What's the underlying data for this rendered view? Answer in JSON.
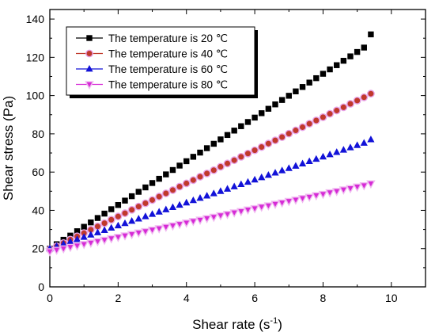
{
  "chart_data": {
    "type": "scatter",
    "xlabel": "Shear rate (s",
    "xlabel_sup": "-1",
    "xlabel_end": ")",
    "ylabel": "Shear stress (Pa)",
    "xlim": [
      0,
      11
    ],
    "ylim": [
      0,
      145
    ],
    "xticks": [
      0,
      2,
      4,
      6,
      8,
      10
    ],
    "yticks": [
      0,
      20,
      40,
      60,
      80,
      100,
      120,
      140
    ],
    "grid": false,
    "legend_position": "top-left",
    "series": [
      {
        "name": "The temperature is 20 ℃",
        "marker": "square",
        "color": "#000000",
        "x": [
          0.0,
          0.2,
          0.4,
          0.6,
          0.8,
          1.0,
          1.2,
          1.4,
          1.6,
          1.8,
          2.0,
          2.2,
          2.4,
          2.6,
          2.8,
          3.0,
          3.2,
          3.4,
          3.6,
          3.8,
          4.0,
          4.2,
          4.4,
          4.6,
          4.8,
          5.0,
          5.2,
          5.4,
          5.6,
          5.8,
          6.0,
          6.2,
          6.4,
          6.6,
          6.8,
          7.0,
          7.2,
          7.4,
          7.6,
          7.8,
          8.0,
          8.2,
          8.4,
          8.6,
          8.8,
          9.0,
          9.2,
          9.4
        ],
        "y": [
          20.0,
          22.3,
          24.6,
          26.8,
          29.1,
          31.4,
          33.7,
          36.0,
          38.3,
          40.6,
          42.8,
          45.1,
          47.4,
          49.7,
          52.0,
          54.3,
          56.5,
          58.8,
          61.1,
          63.4,
          65.7,
          68.0,
          70.2,
          72.5,
          74.8,
          77.1,
          79.4,
          81.7,
          84.0,
          86.2,
          88.5,
          90.8,
          93.1,
          95.4,
          97.7,
          99.9,
          102.2,
          104.5,
          106.8,
          109.1,
          111.4,
          113.7,
          115.9,
          118.2,
          120.5,
          122.8,
          125.1,
          132.0
        ]
      },
      {
        "name": "The temperature is 40 ℃",
        "marker": "circle",
        "color": "#c0392b",
        "x": [
          0.0,
          0.2,
          0.4,
          0.6,
          0.8,
          1.0,
          1.2,
          1.4,
          1.6,
          1.8,
          2.0,
          2.2,
          2.4,
          2.6,
          2.8,
          3.0,
          3.2,
          3.4,
          3.6,
          3.8,
          4.0,
          4.2,
          4.4,
          4.6,
          4.8,
          5.0,
          5.2,
          5.4,
          5.6,
          5.8,
          6.0,
          6.2,
          6.4,
          6.6,
          6.8,
          7.0,
          7.2,
          7.4,
          7.6,
          7.8,
          8.0,
          8.2,
          8.4,
          8.6,
          8.8,
          9.0,
          9.2,
          9.4
        ],
        "y": [
          19.5,
          21.2,
          22.9,
          24.7,
          26.4,
          28.1,
          29.9,
          31.6,
          33.3,
          35.1,
          36.8,
          38.5,
          40.3,
          42.0,
          43.7,
          45.4,
          47.2,
          48.9,
          50.6,
          52.4,
          54.1,
          55.8,
          57.6,
          59.3,
          61.0,
          62.8,
          64.5,
          66.2,
          68.0,
          69.7,
          71.4,
          73.1,
          74.9,
          76.6,
          78.3,
          80.1,
          81.8,
          83.5,
          85.3,
          87.0,
          88.7,
          90.5,
          92.2,
          93.9,
          95.7,
          97.4,
          99.1,
          101.0
        ]
      },
      {
        "name": "The temperature is 60 ℃",
        "marker": "triangle-up",
        "color": "#1212d8",
        "x": [
          0.0,
          0.2,
          0.4,
          0.6,
          0.8,
          1.0,
          1.2,
          1.4,
          1.6,
          1.8,
          2.0,
          2.2,
          2.4,
          2.6,
          2.8,
          3.0,
          3.2,
          3.4,
          3.6,
          3.8,
          4.0,
          4.2,
          4.4,
          4.6,
          4.8,
          5.0,
          5.2,
          5.4,
          5.6,
          5.8,
          6.0,
          6.2,
          6.4,
          6.6,
          6.8,
          7.0,
          7.2,
          7.4,
          7.6,
          7.8,
          8.0,
          8.2,
          8.4,
          8.6,
          8.8,
          9.0,
          9.2,
          9.4
        ],
        "y": [
          20.0,
          21.2,
          22.4,
          23.6,
          24.8,
          26.0,
          27.2,
          28.4,
          29.6,
          30.8,
          32.0,
          33.2,
          34.4,
          35.6,
          36.8,
          38.0,
          39.2,
          40.4,
          41.6,
          42.8,
          44.0,
          45.2,
          46.4,
          47.6,
          48.8,
          50.0,
          51.2,
          52.4,
          53.6,
          54.8,
          56.0,
          57.2,
          58.4,
          59.6,
          60.8,
          62.0,
          63.2,
          64.4,
          65.6,
          66.8,
          68.0,
          69.2,
          70.4,
          71.6,
          72.8,
          74.0,
          75.2,
          77.0
        ]
      },
      {
        "name": "The temperature is 80 ℃",
        "marker": "triangle-down",
        "color": "#d62ad6",
        "x": [
          0.0,
          0.2,
          0.4,
          0.6,
          0.8,
          1.0,
          1.2,
          1.4,
          1.6,
          1.8,
          2.0,
          2.2,
          2.4,
          2.6,
          2.8,
          3.0,
          3.2,
          3.4,
          3.6,
          3.8,
          4.0,
          4.2,
          4.4,
          4.6,
          4.8,
          5.0,
          5.2,
          5.4,
          5.6,
          5.8,
          6.0,
          6.2,
          6.4,
          6.6,
          6.8,
          7.0,
          7.2,
          7.4,
          7.6,
          7.8,
          8.0,
          8.2,
          8.4,
          8.6,
          8.8,
          9.0,
          9.2,
          9.4
        ],
        "y": [
          18.5,
          19.3,
          20.0,
          20.8,
          21.5,
          22.3,
          23.0,
          23.8,
          24.5,
          25.3,
          26.0,
          26.8,
          27.5,
          28.3,
          29.0,
          29.8,
          30.5,
          31.3,
          32.0,
          32.8,
          33.5,
          34.3,
          35.0,
          35.8,
          36.5,
          37.3,
          38.0,
          38.8,
          39.5,
          40.3,
          41.0,
          41.8,
          42.5,
          43.3,
          44.0,
          44.8,
          45.5,
          46.3,
          47.0,
          47.8,
          48.5,
          49.3,
          50.0,
          50.8,
          51.5,
          52.3,
          53.0,
          54.0
        ]
      }
    ]
  }
}
